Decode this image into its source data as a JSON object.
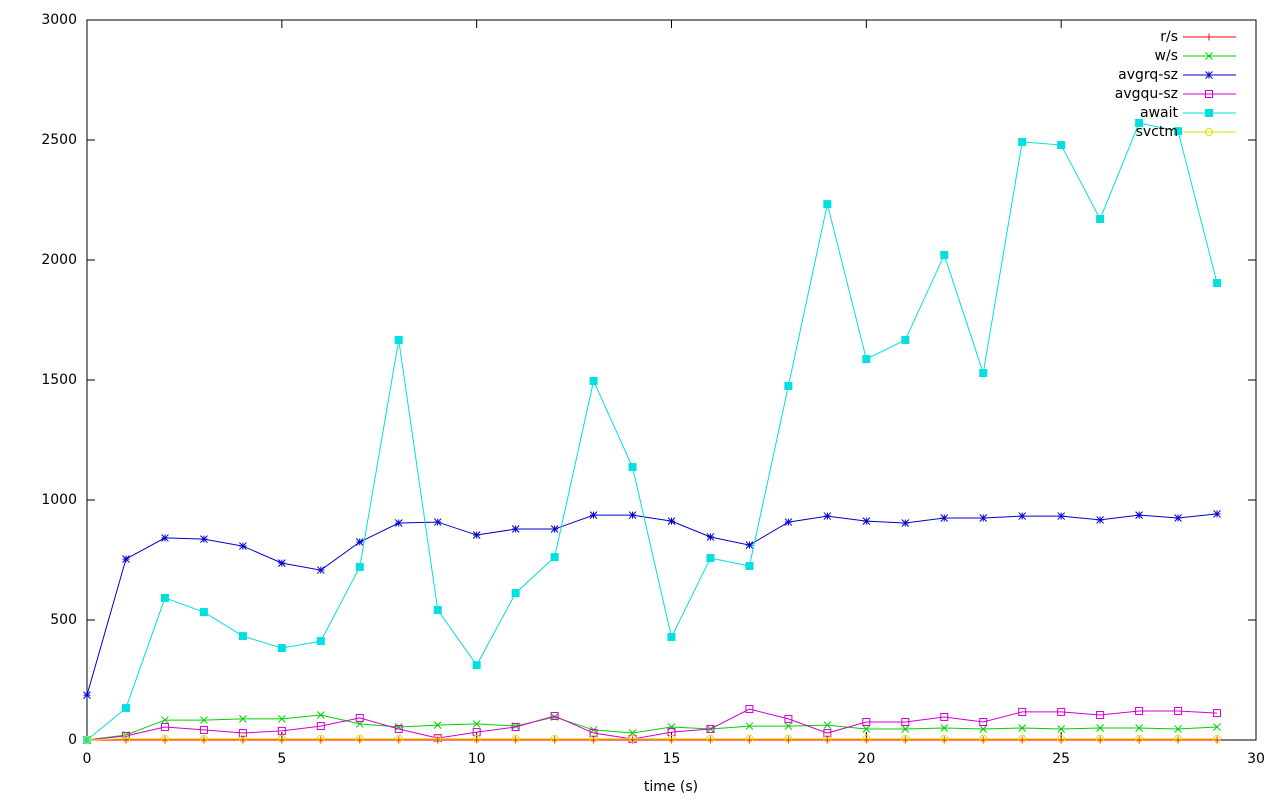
{
  "chart_data": {
    "type": "line",
    "x_label": "time (s)",
    "x": [
      0,
      1,
      2,
      3,
      4,
      5,
      6,
      7,
      8,
      9,
      10,
      11,
      12,
      13,
      14,
      15,
      16,
      17,
      18,
      19,
      20,
      21,
      22,
      23,
      24,
      25,
      26,
      27,
      28,
      29
    ],
    "series": [
      {
        "name": "r/s",
        "color": "#ff0000",
        "marker": "plus",
        "values": [
          0,
          0,
          0,
          0,
          0,
          0,
          0,
          0,
          0,
          0,
          0,
          0,
          0,
          0,
          0,
          0,
          0,
          0,
          0,
          0,
          0,
          0,
          0,
          0,
          0,
          0,
          0,
          0,
          0,
          0
        ]
      },
      {
        "name": "w/s",
        "color": "#00d000",
        "marker": "cross",
        "values": [
          0,
          21,
          83,
          83,
          88,
          88,
          104,
          67,
          54,
          62,
          67,
          58,
          96,
          42,
          29,
          54,
          46,
          58,
          58,
          62,
          46,
          46,
          50,
          46,
          50,
          46,
          50,
          50,
          46,
          54
        ]
      },
      {
        "name": "avgrq-sz",
        "color": "#0000d0",
        "marker": "star",
        "values": [
          187,
          754,
          842,
          837,
          808,
          737,
          708,
          825,
          904,
          908,
          854,
          879,
          879,
          937,
          937,
          912,
          846,
          812,
          908,
          933,
          912,
          904,
          925,
          925,
          933,
          933,
          917,
          937,
          925,
          942
        ]
      },
      {
        "name": "avgqu-sz",
        "color": "#d000d0",
        "marker": "square-open",
        "values": [
          0,
          17,
          54,
          42,
          29,
          38,
          58,
          92,
          46,
          8,
          33,
          54,
          100,
          29,
          4,
          33,
          46,
          129,
          88,
          29,
          75,
          75,
          96,
          75,
          117,
          117,
          104,
          121,
          121,
          112
        ]
      },
      {
        "name": "await",
        "color": "#00e0e0",
        "marker": "square-filled",
        "values": [
          0,
          133,
          592,
          533,
          433,
          383,
          412,
          721,
          1667,
          542,
          312,
          612,
          762,
          1496,
          1137,
          429,
          758,
          725,
          1475,
          2233,
          1587,
          1667,
          2021,
          1529,
          2492,
          2479,
          2171,
          2571,
          2537,
          1904
        ]
      },
      {
        "name": "svctm",
        "color": "#e0e000",
        "marker": "circle-open",
        "values": [
          0,
          5,
          5,
          5,
          5,
          5,
          5,
          5,
          5,
          5,
          5,
          5,
          5,
          5,
          5,
          5,
          5,
          5,
          5,
          5,
          5,
          5,
          5,
          5,
          5,
          5,
          5,
          5,
          5,
          5
        ]
      }
    ],
    "xlim": [
      0,
      30
    ],
    "xticks": [
      0,
      5,
      10,
      15,
      20,
      25,
      30
    ],
    "ylim": [
      0,
      3000
    ],
    "yticks": [
      0,
      500,
      1000,
      1500,
      2000,
      2500,
      3000
    ],
    "legend": "top-right",
    "grid": false
  }
}
